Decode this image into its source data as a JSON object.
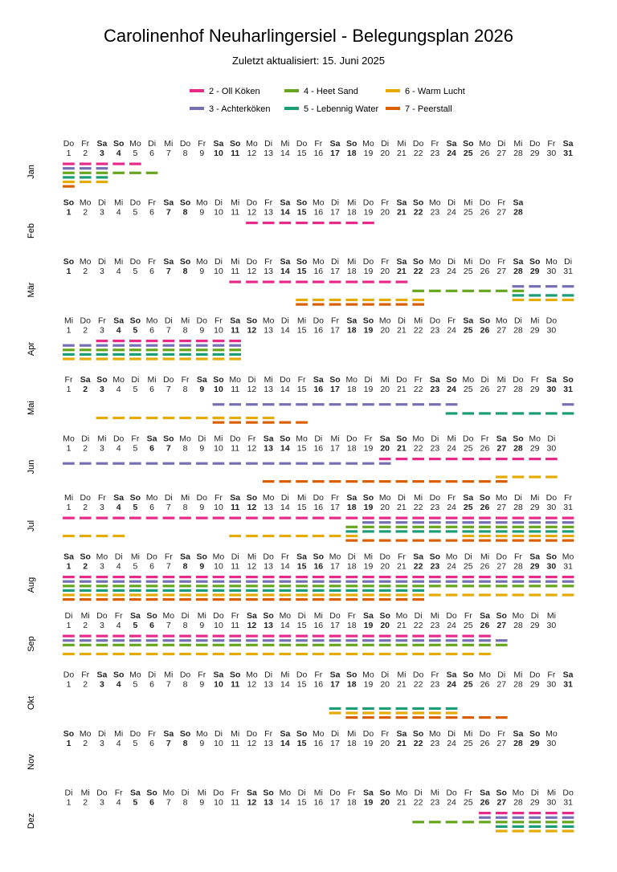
{
  "title": "Carolinenhof Neuharlingersiel - Belegungsplan 2026",
  "subtitle": "Zuletzt aktualisiert: 15. Juni 2025",
  "colors": {
    "2": "#e7298a",
    "3": "#7570b3",
    "4": "#66a61e",
    "5": "#1b9e77",
    "6": "#e6ab02",
    "7": "#d95f02"
  },
  "legend": [
    {
      "key": "2",
      "label": "2 - Oll Köken"
    },
    {
      "key": "3",
      "label": "3 - Achterköken"
    },
    {
      "key": "4",
      "label": "4 - Heet Sand"
    },
    {
      "key": "5",
      "label": "5 - Lebennig Water"
    },
    {
      "key": "6",
      "label": "6 - Warm Lucht"
    },
    {
      "key": "7",
      "label": "7 - Peerstall"
    }
  ],
  "chart_data": {
    "type": "timeline",
    "year": 2026,
    "weekday_abbr": [
      "Mo",
      "Di",
      "Mi",
      "Do",
      "Fr",
      "Sa",
      "So"
    ],
    "months": [
      {
        "label": "Jan",
        "bookings": [
          {
            "unit": "2",
            "lane": 1,
            "from": 1,
            "to": 3
          },
          {
            "unit": "2",
            "lane": 1,
            "from": 4,
            "to": 5
          },
          {
            "unit": "3",
            "lane": 2,
            "from": 1,
            "to": 3
          },
          {
            "unit": "4",
            "lane": 3,
            "from": 1,
            "to": 6
          },
          {
            "unit": "5",
            "lane": 4,
            "from": 1,
            "to": 3
          },
          {
            "unit": "6",
            "lane": 5,
            "from": 1,
            "to": 3
          },
          {
            "unit": "7",
            "lane": 6,
            "from": 1,
            "to": 1
          }
        ]
      },
      {
        "label": "Feb",
        "bookings": [
          {
            "unit": "2",
            "lane": 1,
            "from": 12,
            "to": 19
          }
        ]
      },
      {
        "label": "Mär",
        "bookings": [
          {
            "unit": "2",
            "lane": 1,
            "from": 11,
            "to": 21
          },
          {
            "unit": "3",
            "lane": 2,
            "from": 28,
            "to": 31
          },
          {
            "unit": "4",
            "lane": 3,
            "from": 22,
            "to": 28
          },
          {
            "unit": "5",
            "lane": 4,
            "from": 28,
            "to": 31
          },
          {
            "unit": "6",
            "lane": 5,
            "from": 15,
            "to": 22
          },
          {
            "unit": "7",
            "lane": 6,
            "from": 15,
            "to": 22
          },
          {
            "unit": "6",
            "lane": 5,
            "from": 28,
            "to": 31
          }
        ]
      },
      {
        "label": "Apr",
        "bookings": [
          {
            "unit": "2",
            "lane": 1,
            "from": 3,
            "to": 11
          },
          {
            "unit": "3",
            "lane": 2,
            "from": 1,
            "to": 11
          },
          {
            "unit": "4",
            "lane": 3,
            "from": 1,
            "to": 11
          },
          {
            "unit": "5",
            "lane": 4,
            "from": 1,
            "to": 11
          },
          {
            "unit": "6",
            "lane": 5,
            "from": 1,
            "to": 11
          }
        ]
      },
      {
        "label": "Mai",
        "bookings": [
          {
            "unit": "3",
            "lane": 2,
            "from": 10,
            "to": 24
          },
          {
            "unit": "3",
            "lane": 2,
            "from": 31,
            "to": 31
          },
          {
            "unit": "5",
            "lane": 4,
            "from": 24,
            "to": 31
          },
          {
            "unit": "6",
            "lane": 5,
            "from": 3,
            "to": 10
          },
          {
            "unit": "6",
            "lane": 5,
            "from": 10,
            "to": 13
          },
          {
            "unit": "7",
            "lane": 6,
            "from": 10,
            "to": 15
          }
        ]
      },
      {
        "label": "Jun",
        "bookings": [
          {
            "unit": "2",
            "lane": 1,
            "from": 20,
            "to": 30
          },
          {
            "unit": "3",
            "lane": 2,
            "from": 1,
            "to": 20
          },
          {
            "unit": "6",
            "lane": 5,
            "from": 27,
            "to": 30
          },
          {
            "unit": "7",
            "lane": 6,
            "from": 13,
            "to": 27
          }
        ]
      },
      {
        "label": "Jul",
        "bookings": [
          {
            "unit": "2",
            "lane": 1,
            "from": 1,
            "to": 31
          },
          {
            "unit": "3",
            "lane": 2,
            "from": 19,
            "to": 31
          },
          {
            "unit": "4",
            "lane": 3,
            "from": 18,
            "to": 31
          },
          {
            "unit": "5",
            "lane": 4,
            "from": 18,
            "to": 31
          },
          {
            "unit": "6",
            "lane": 5,
            "from": 1,
            "to": 4
          },
          {
            "unit": "6",
            "lane": 5,
            "from": 11,
            "to": 18
          },
          {
            "unit": "6",
            "lane": 5,
            "from": 25,
            "to": 31
          },
          {
            "unit": "7",
            "lane": 6,
            "from": 18,
            "to": 31
          }
        ]
      },
      {
        "label": "Aug",
        "bookings": [
          {
            "unit": "2",
            "lane": 1,
            "from": 1,
            "to": 31
          },
          {
            "unit": "3",
            "lane": 2,
            "from": 1,
            "to": 31
          },
          {
            "unit": "4",
            "lane": 3,
            "from": 1,
            "to": 31
          },
          {
            "unit": "5",
            "lane": 4,
            "from": 1,
            "to": 22
          },
          {
            "unit": "6",
            "lane": 5,
            "from": 1,
            "to": 31
          },
          {
            "unit": "7",
            "lane": 6,
            "from": 1,
            "to": 22
          }
        ]
      },
      {
        "label": "Sep",
        "bookings": [
          {
            "unit": "2",
            "lane": 1,
            "from": 1,
            "to": 26
          },
          {
            "unit": "3",
            "lane": 2,
            "from": 1,
            "to": 27
          },
          {
            "unit": "4",
            "lane": 3,
            "from": 1,
            "to": 27
          },
          {
            "unit": "6",
            "lane": 5,
            "from": 1,
            "to": 26
          }
        ]
      },
      {
        "label": "Okt",
        "bookings": [
          {
            "unit": "5",
            "lane": 4,
            "from": 17,
            "to": 24
          },
          {
            "unit": "6",
            "lane": 5,
            "from": 17,
            "to": 24
          },
          {
            "unit": "7",
            "lane": 6,
            "from": 18,
            "to": 27
          }
        ]
      },
      {
        "label": "Nov",
        "bookings": []
      },
      {
        "label": "Dez",
        "bookings": [
          {
            "unit": "2",
            "lane": 1,
            "from": 26,
            "to": 31
          },
          {
            "unit": "3",
            "lane": 2,
            "from": 26,
            "to": 31
          },
          {
            "unit": "4",
            "lane": 3,
            "from": 22,
            "to": 31
          },
          {
            "unit": "5",
            "lane": 4,
            "from": 27,
            "to": 31
          },
          {
            "unit": "6",
            "lane": 5,
            "from": 27,
            "to": 31
          }
        ]
      }
    ]
  }
}
